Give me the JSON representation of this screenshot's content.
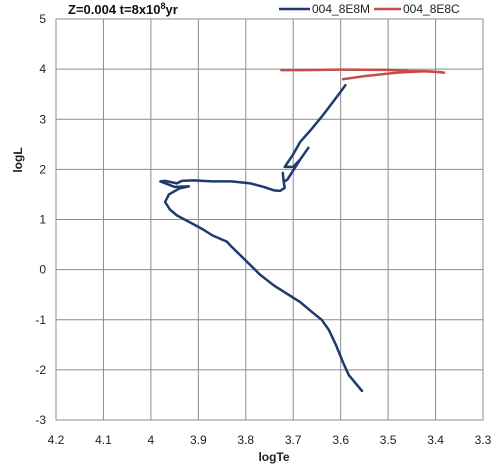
{
  "chart_data": {
    "type": "line",
    "title": "Z=0.004 t=8x10⁸yr",
    "title_parts": {
      "main": "Z=0.004 t=8x10",
      "sup": "8",
      "tail": "yr"
    },
    "xlabel": "logTe",
    "ylabel": "logL",
    "xlim": [
      4.2,
      3.3
    ],
    "ylim": [
      -3,
      5
    ],
    "x_ticks": [
      "4.2",
      "4.1",
      "4",
      "3.9",
      "3.8",
      "3.7",
      "3.6",
      "3.5",
      "3.4",
      "3.3"
    ],
    "y_ticks": [
      "-3",
      "-2",
      "-1",
      "0",
      "1",
      "2",
      "3",
      "4",
      "5"
    ],
    "grid": true,
    "legend_position": "top-right",
    "series": [
      {
        "name": "004_8E8M",
        "color": "#1f3a6e",
        "points": [
          [
            3.555,
            -2.42
          ],
          [
            3.57,
            -2.25
          ],
          [
            3.583,
            -2.1
          ],
          [
            3.595,
            -1.85
          ],
          [
            3.61,
            -1.5
          ],
          [
            3.625,
            -1.2
          ],
          [
            3.64,
            -1.0
          ],
          [
            3.66,
            -0.85
          ],
          [
            3.685,
            -0.65
          ],
          [
            3.71,
            -0.5
          ],
          [
            3.74,
            -0.32
          ],
          [
            3.77,
            -0.1
          ],
          [
            3.8,
            0.18
          ],
          [
            3.83,
            0.46
          ],
          [
            3.84,
            0.56
          ],
          [
            3.87,
            0.68
          ],
          [
            3.89,
            0.8
          ],
          [
            3.915,
            0.93
          ],
          [
            3.945,
            1.08
          ],
          [
            3.96,
            1.2
          ],
          [
            3.97,
            1.35
          ],
          [
            3.962,
            1.5
          ],
          [
            3.94,
            1.62
          ],
          [
            3.92,
            1.66
          ],
          [
            3.95,
            1.65
          ],
          [
            3.98,
            1.76
          ],
          [
            3.97,
            1.77
          ],
          [
            3.945,
            1.72
          ],
          [
            3.935,
            1.77
          ],
          [
            3.91,
            1.78
          ],
          [
            3.87,
            1.76
          ],
          [
            3.83,
            1.76
          ],
          [
            3.79,
            1.72
          ],
          [
            3.762,
            1.65
          ],
          [
            3.74,
            1.58
          ],
          [
            3.728,
            1.57
          ],
          [
            3.718,
            1.63
          ],
          [
            3.72,
            1.75
          ],
          [
            3.722,
            1.93
          ],
          [
            3.72,
            1.75
          ],
          [
            3.712,
            1.8
          ],
          [
            3.7,
            1.98
          ],
          [
            3.685,
            2.2
          ],
          [
            3.668,
            2.43
          ],
          [
            3.685,
            2.2
          ],
          [
            3.7,
            2.05
          ],
          [
            3.718,
            2.05
          ],
          [
            3.7,
            2.3
          ],
          [
            3.685,
            2.55
          ],
          [
            3.66,
            2.82
          ],
          [
            3.64,
            3.05
          ],
          [
            3.62,
            3.3
          ],
          [
            3.6,
            3.55
          ],
          [
            3.59,
            3.68
          ]
        ]
      },
      {
        "name": "004_8E8C",
        "color": "#c94a4a",
        "points": [
          [
            3.725,
            3.98
          ],
          [
            3.68,
            3.98
          ],
          [
            3.6,
            3.99
          ],
          [
            3.5,
            3.985
          ],
          [
            3.45,
            3.96
          ],
          [
            3.43,
            3.96
          ],
          [
            3.39,
            3.94
          ],
          [
            3.382,
            3.93
          ],
          [
            3.42,
            3.96
          ],
          [
            3.48,
            3.93
          ],
          [
            3.55,
            3.86
          ],
          [
            3.595,
            3.8
          ]
        ]
      }
    ]
  }
}
